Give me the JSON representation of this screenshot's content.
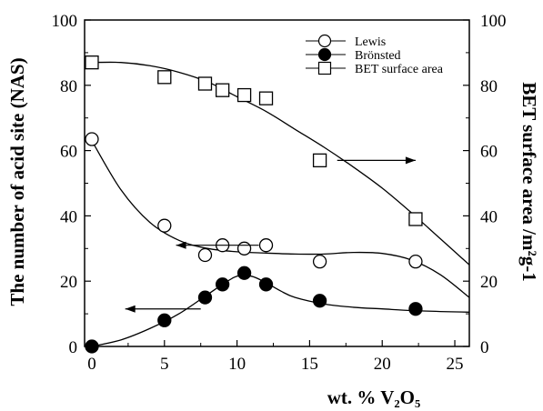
{
  "chart_data": {
    "type": "scatter",
    "xlabel": "wt. % V₂O₅",
    "ylabel_left": "The number of acid site (NAS)",
    "ylabel_right": "BET surface area /m²g-1",
    "xlim": [
      -0.5,
      26
    ],
    "ylim_left": [
      0,
      100
    ],
    "ylim_right": [
      0,
      100
    ],
    "x_ticks": [
      "0",
      "5",
      "10",
      "15",
      "20",
      "25"
    ],
    "y_left_ticks": [
      "0",
      "20",
      "40",
      "60",
      "80",
      "100"
    ],
    "y_right_ticks": [
      "0",
      "20",
      "40",
      "60",
      "80",
      "100"
    ],
    "grid": false,
    "legend_position": "top-right",
    "series": [
      {
        "name": "Lewis",
        "marker": "open-circle",
        "axis": "left",
        "x": [
          0,
          5,
          7.8,
          9,
          10.5,
          12,
          15.7,
          22.3
        ],
        "y": [
          63.5,
          37,
          28,
          31,
          30,
          31,
          26,
          26
        ],
        "fit_x": [
          0,
          2,
          4,
          6,
          8,
          10,
          12,
          14,
          16,
          18,
          20,
          22,
          24,
          26
        ],
        "fit_y": [
          63,
          48,
          38,
          32.5,
          30,
          29,
          28.6,
          28.3,
          28.3,
          28.8,
          28.5,
          26.5,
          22,
          15
        ]
      },
      {
        "name": "Brönsted",
        "marker": "filled-circle",
        "axis": "left",
        "x": [
          0,
          5,
          7.8,
          9,
          10.5,
          12,
          15.7,
          22.3
        ],
        "y": [
          0,
          8,
          15,
          19,
          22.5,
          19,
          14,
          11.5
        ],
        "fit_x": [
          0,
          2,
          4,
          6,
          8,
          9,
          10,
          11,
          12,
          13,
          14,
          16,
          18,
          20,
          22,
          24,
          26
        ],
        "fit_y": [
          0,
          2,
          5.5,
          10,
          16,
          19,
          21.5,
          21.5,
          19.5,
          17,
          15,
          13,
          12,
          11.5,
          11,
          10.7,
          10.5
        ]
      },
      {
        "name": "BET surface area",
        "marker": "open-square",
        "axis": "right",
        "x": [
          0,
          5,
          7.8,
          9,
          10.5,
          12,
          15.7,
          22.3
        ],
        "y": [
          87,
          82.5,
          80.5,
          78.5,
          77,
          76,
          57,
          39
        ],
        "fit_x": [
          0,
          2,
          4,
          6,
          8,
          10,
          12,
          14,
          16,
          18,
          20,
          22,
          24,
          26
        ],
        "fit_y": [
          87,
          87,
          86,
          84,
          81,
          76.5,
          72,
          66.5,
          61,
          55,
          48.5,
          41,
          33,
          25
        ]
      }
    ],
    "annotations": [
      {
        "name": "lewis-arrow",
        "direction": "left",
        "x_from": 11.5,
        "x_to": 5.8,
        "y": 31,
        "axis": "left"
      },
      {
        "name": "bronsted-arrow",
        "direction": "left",
        "x_from": 7.5,
        "x_to": 2.3,
        "y": 11.5,
        "axis": "left"
      },
      {
        "name": "bet-arrow",
        "direction": "right",
        "x_from": 16.9,
        "x_to": 22.3,
        "y": 57,
        "axis": "right"
      }
    ]
  }
}
